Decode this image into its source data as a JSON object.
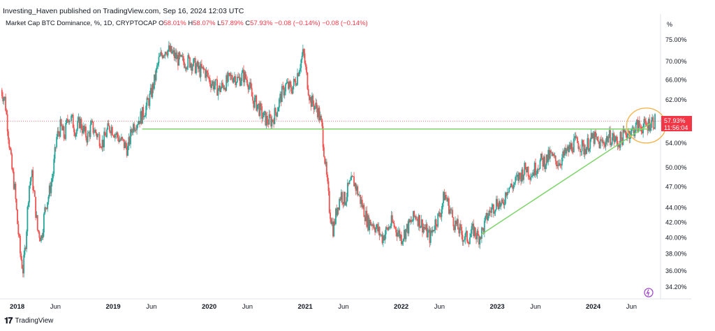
{
  "header": {
    "published": "Investing_Haven published on TradingView.com, Sep 16, 2024 12:03 UTC"
  },
  "legend": {
    "symbol": "Market Cap BTC Dominance, %, 1D, CRYPTOCAP",
    "open_label": "O",
    "open": "58.01%",
    "high_label": "H",
    "high": "58.07%",
    "low_label": "L",
    "low": "57.89%",
    "close_label": "C",
    "close": "57.93%",
    "change": "−0.08 (−0.14%)",
    "change2": "−0.08 (−0.14%)"
  },
  "price_tag": {
    "price": "57.93%",
    "countdown": "11:56:04"
  },
  "footer": {
    "brand": "TradingView"
  },
  "colors": {
    "up": "#26a69a",
    "down": "#ef5350",
    "trend": "#7ed36a",
    "ellipse": "#f5b041",
    "tag": "#f23645"
  },
  "chart_data": {
    "type": "line",
    "title": "",
    "xlabel": "",
    "ylabel": "",
    "y_unit_label": "%",
    "y_scale": "log",
    "ylim": [
      33.2,
      78
    ],
    "xlim": [
      2018.0,
      2024.85
    ],
    "y_ticks": [
      75,
      70,
      66,
      62,
      57.93,
      54,
      50,
      47,
      44,
      42,
      40,
      38,
      36,
      34.2
    ],
    "y_tick_labels": [
      "75.00%",
      "70.00%",
      "66.00%",
      "62.00%",
      "57.93%",
      "54.00%",
      "50.00%",
      "47.00%",
      "44.00%",
      "42.00%",
      "40.00%",
      "38.00%",
      "36.00%",
      "34.20%"
    ],
    "x_ticks": [
      {
        "label": "2018",
        "x": 2018.0,
        "bold": true
      },
      {
        "label": "Jun",
        "x": 2018.42,
        "bold": false
      },
      {
        "label": "2019",
        "x": 2019.0,
        "bold": true
      },
      {
        "label": "Jun",
        "x": 2019.42,
        "bold": false
      },
      {
        "label": "2020",
        "x": 2020.0,
        "bold": true
      },
      {
        "label": "Jun",
        "x": 2020.42,
        "bold": false
      },
      {
        "label": "2021",
        "x": 2021.0,
        "bold": true
      },
      {
        "label": "Jun",
        "x": 2021.42,
        "bold": false
      },
      {
        "label": "2022",
        "x": 2022.0,
        "bold": true
      },
      {
        "label": "Jun",
        "x": 2022.42,
        "bold": false
      },
      {
        "label": "2023",
        "x": 2023.0,
        "bold": true
      },
      {
        "label": "Jun",
        "x": 2023.42,
        "bold": false
      },
      {
        "label": "2024",
        "x": 2024.0,
        "bold": true
      },
      {
        "label": "Jun",
        "x": 2024.42,
        "bold": false
      }
    ],
    "series": [
      {
        "x": [
          2017.88,
          2017.92,
          2017.96,
          2017.99,
          2018.02,
          2018.05,
          2018.08,
          2018.11,
          2018.14,
          2018.17,
          2018.2,
          2018.23,
          2018.26,
          2018.3,
          2018.34,
          2018.38,
          2018.42,
          2018.46,
          2018.5,
          2018.54,
          2018.58,
          2018.62,
          2018.66,
          2018.7,
          2018.74,
          2018.78,
          2018.82,
          2018.86,
          2018.9,
          2018.94,
          2018.98,
          2019.02,
          2019.06,
          2019.1,
          2019.15,
          2019.2,
          2019.25,
          2019.3,
          2019.35,
          2019.4,
          2019.44,
          2019.48,
          2019.52,
          2019.56,
          2019.6,
          2019.65,
          2019.7,
          2019.75,
          2019.8,
          2019.85,
          2019.9,
          2019.95,
          2020.0,
          2020.05,
          2020.1,
          2020.15,
          2020.2,
          2020.25,
          2020.3,
          2020.35,
          2020.4,
          2020.45,
          2020.5,
          2020.55,
          2020.6,
          2020.65,
          2020.7,
          2020.75,
          2020.8,
          2020.85,
          2020.9,
          2020.95,
          2021.0,
          2021.03,
          2021.06,
          2021.1,
          2021.14,
          2021.18,
          2021.22,
          2021.26,
          2021.3,
          2021.34,
          2021.38,
          2021.42,
          2021.46,
          2021.5,
          2021.55,
          2021.6,
          2021.65,
          2021.7,
          2021.75,
          2021.8,
          2021.85,
          2021.9,
          2021.95,
          2022.0,
          2022.05,
          2022.1,
          2022.15,
          2022.2,
          2022.25,
          2022.3,
          2022.35,
          2022.4,
          2022.45,
          2022.5,
          2022.55,
          2022.6,
          2022.65,
          2022.7,
          2022.75,
          2022.8,
          2022.85,
          2022.9,
          2022.95,
          2023.0,
          2023.05,
          2023.1,
          2023.15,
          2023.2,
          2023.25,
          2023.3,
          2023.35,
          2023.4,
          2023.45,
          2023.5,
          2023.55,
          2023.6,
          2023.65,
          2023.7,
          2023.75,
          2023.8,
          2023.85,
          2023.9,
          2023.95,
          2024.0,
          2024.05,
          2024.1,
          2024.15,
          2024.2,
          2024.25,
          2024.3,
          2024.35,
          2024.4,
          2024.45,
          2024.5,
          2024.55,
          2024.6,
          2024.65,
          2024.7
        ],
        "y": [
          64,
          62,
          55,
          50,
          47,
          42,
          38,
          36,
          40,
          47,
          49,
          45,
          41,
          40,
          44,
          46,
          49,
          55,
          57,
          55,
          59,
          58,
          56,
          58,
          56,
          55,
          57,
          56,
          55,
          54,
          56,
          57,
          56,
          55,
          54,
          53,
          57,
          58,
          59,
          61,
          63,
          66,
          70,
          72,
          73,
          72,
          71,
          70,
          70,
          70,
          69,
          68,
          68,
          66,
          65,
          64,
          65,
          66,
          67,
          66,
          67,
          66,
          62,
          61,
          59,
          58,
          58,
          60,
          63,
          65,
          64,
          66,
          70,
          72,
          67,
          62,
          61,
          60,
          57,
          50,
          44,
          41,
          44,
          46,
          45,
          47,
          48,
          46,
          44,
          42,
          42,
          41,
          40,
          41,
          42,
          41,
          40,
          41,
          42,
          43,
          42,
          41,
          40,
          42,
          43,
          46,
          44,
          42,
          41,
          40,
          40,
          41,
          40,
          41,
          43,
          44,
          45,
          44,
          47,
          47,
          48,
          49,
          50,
          49,
          50,
          51,
          51,
          52,
          51,
          51,
          52,
          53,
          54,
          54,
          53,
          54,
          55,
          54,
          54,
          55,
          55,
          54,
          55,
          56,
          56,
          57,
          57,
          57,
          57.93,
          57.93
        ]
      }
    ],
    "annotations": [
      {
        "type": "horizontal_level",
        "x_start": 2019.35,
        "x_end": 2024.62,
        "y": 56.5
      },
      {
        "type": "trendline",
        "x": [
          2022.88,
          2024.65
        ],
        "y": [
          40.4,
          57.6
        ]
      },
      {
        "type": "ellipse",
        "cx": 2024.6,
        "cy": 57.5
      }
    ]
  }
}
